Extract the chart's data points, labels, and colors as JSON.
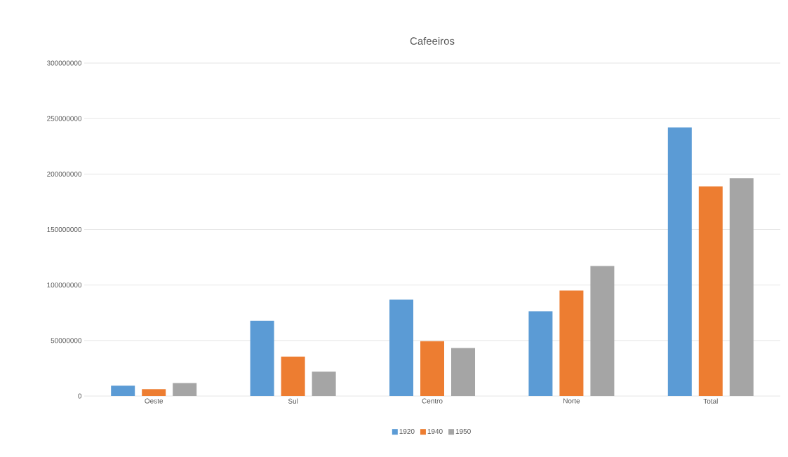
{
  "chart_data": {
    "type": "bar",
    "title": "Cafeeiros",
    "categories": [
      "Oeste",
      "Sul",
      "Centro",
      "Norte",
      "Total"
    ],
    "series": [
      {
        "name": "1920",
        "color": "#5b9bd5",
        "values": [
          9300000,
          67800000,
          86800000,
          76300000,
          242100000
        ]
      },
      {
        "name": "1940",
        "color": "#ed7d31",
        "values": [
          6100000,
          35600000,
          49500000,
          95100000,
          188800000
        ]
      },
      {
        "name": "1950",
        "color": "#a5a5a5",
        "values": [
          11700000,
          22000000,
          43200000,
          117100000,
          196200000
        ]
      }
    ],
    "ylim": [
      0,
      300000000
    ],
    "yticks": [
      0,
      50000000,
      100000000,
      150000000,
      200000000,
      250000000,
      300000000
    ],
    "grid": "y",
    "legend": "bottom"
  }
}
